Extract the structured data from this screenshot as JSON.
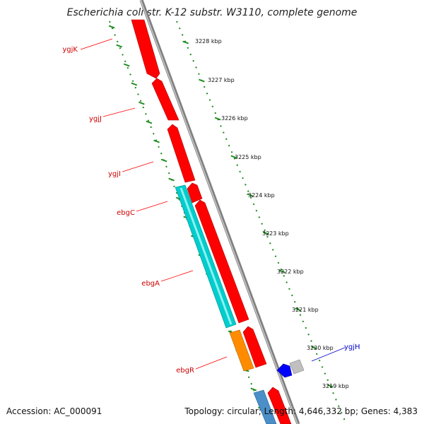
{
  "title": "Escherichia coli str. K-12 substr. W3110, complete genome",
  "footer": {
    "accession": "Accession: AC_000091",
    "summary": "Topology: circular; Length: 4,646,332 bp; Genes: 4,383"
  },
  "colors": {
    "backbone": "#888888",
    "tick": "#1a8a1a",
    "forward_gene": "#ff0000",
    "ebg_long": "#00cccc",
    "ebgR": "#ff8c00",
    "ygjH": "#0000ff",
    "label_red": "#cc0000",
    "label_blue": "#0000cc"
  },
  "ticks": [
    "3228 kbp",
    "3227 kbp",
    "3226 kbp",
    "3225 kbp",
    "3224 kbp",
    "3223 kbp",
    "3222 kbp",
    "3221 kbp",
    "3220 kbp",
    "3219 kbp"
  ],
  "gene_labels": [
    {
      "name": "ygjK",
      "color": "label_red"
    },
    {
      "name": "ygjJ",
      "color": "label_red"
    },
    {
      "name": "ygjI",
      "color": "label_red"
    },
    {
      "name": "ebgC",
      "color": "label_red"
    },
    {
      "name": "ebgA",
      "color": "label_red"
    },
    {
      "name": "ebgR",
      "color": "label_red"
    },
    {
      "name": "ygjH",
      "color": "label_blue"
    }
  ]
}
